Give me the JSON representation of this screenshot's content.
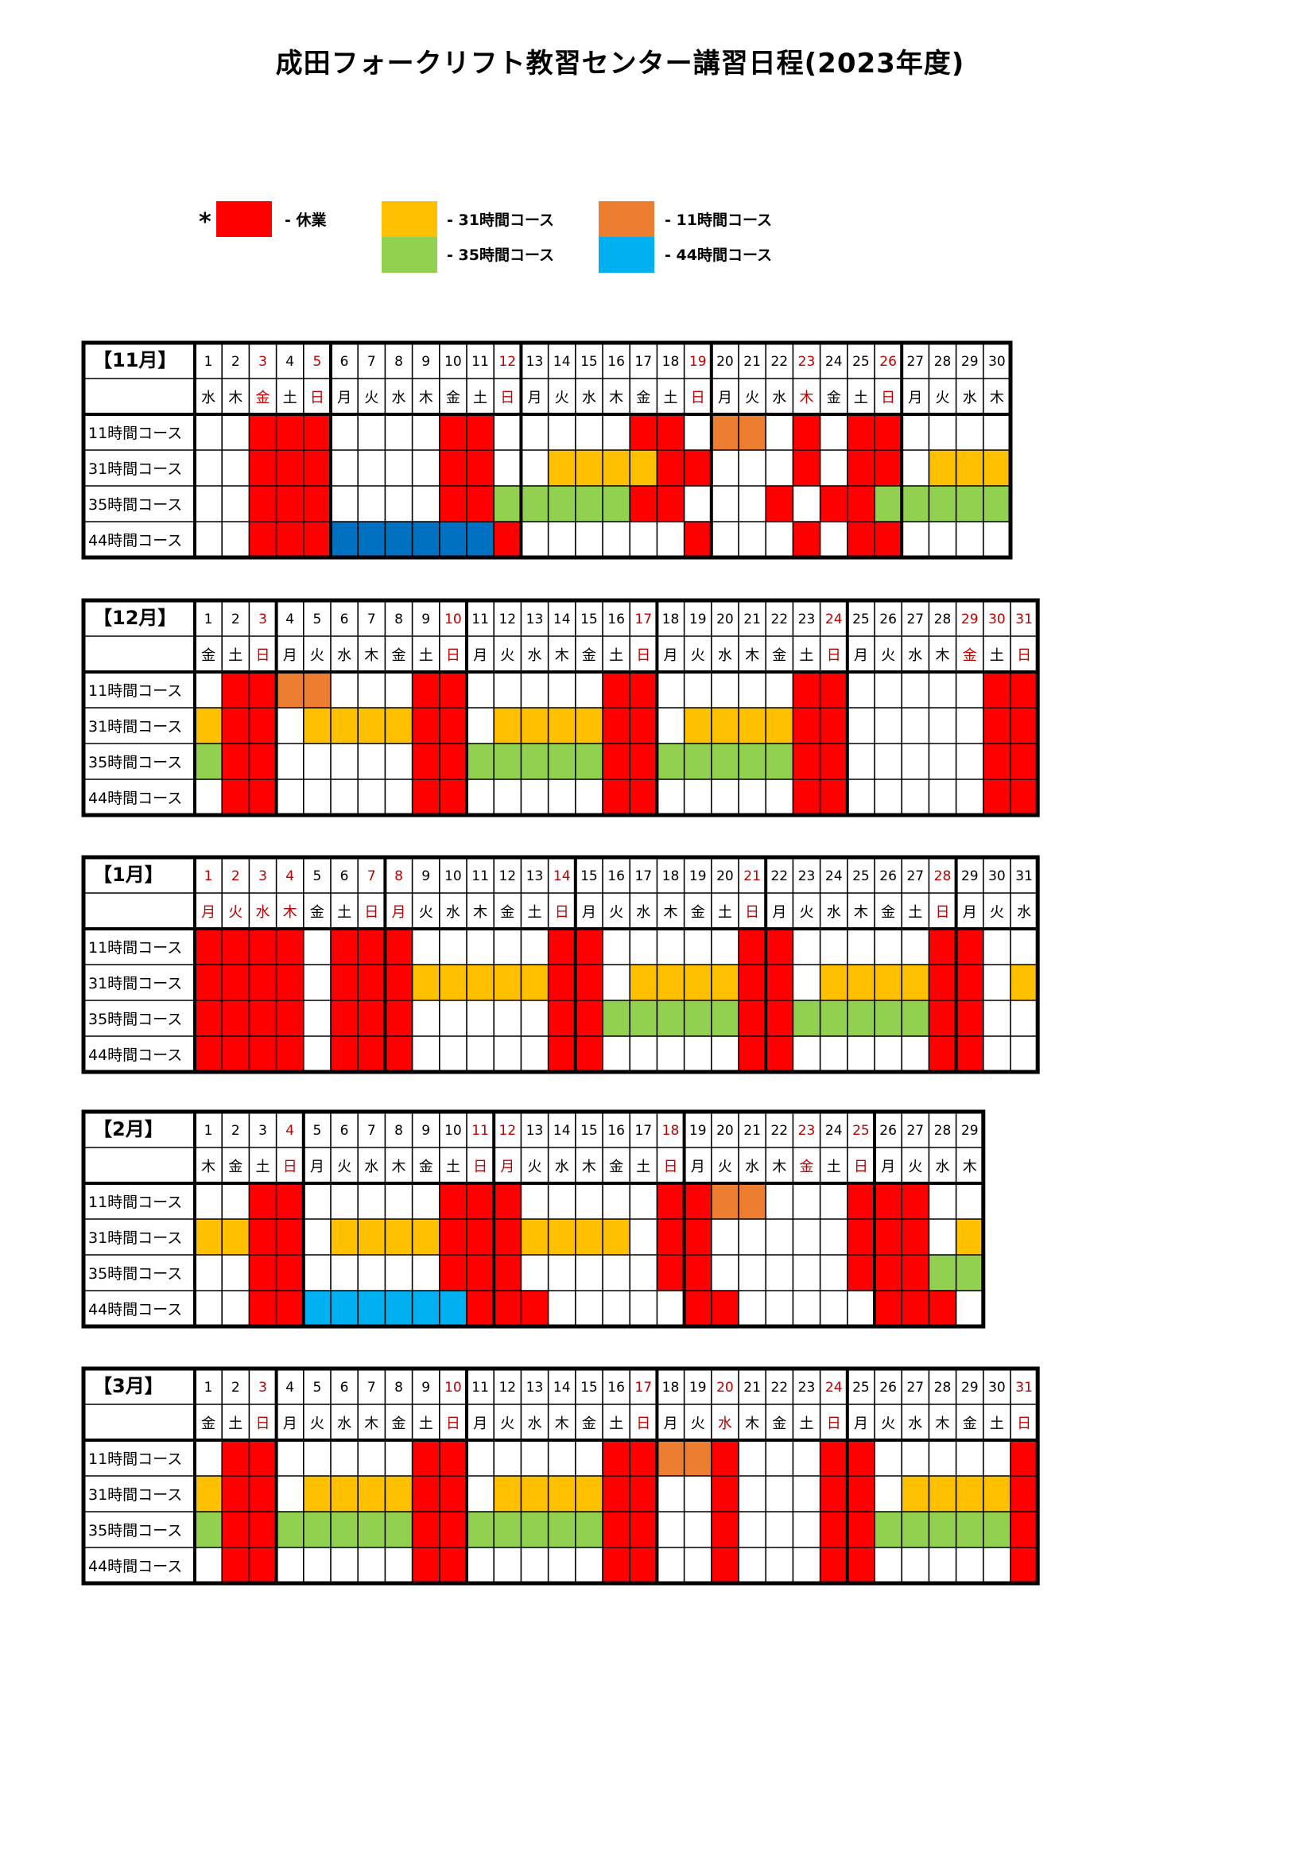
{
  "title": "成田フォークリフト教習センター講習日程(2023年度)",
  "legend": {
    "asterisk": "*",
    "items": [
      {
        "key": "closed",
        "label": "- 休業",
        "color": "#ff0000"
      },
      {
        "key": "c31",
        "label": "- 31時間コース",
        "color": "#ffc000"
      },
      {
        "key": "c11",
        "label": "- 11時間コース",
        "color": "#ed7d31"
      },
      {
        "key": "c35",
        "label": "- 35時間コース",
        "color": "#92d050"
      },
      {
        "key": "c44",
        "label": "- 44時間コース",
        "color": "#00b0f0"
      }
    ]
  },
  "colors": {
    "R": "#ff0000",
    "Y": "#ffc000",
    "O": "#ed7d31",
    "G": "#92d050",
    "B": "#00b0f0",
    "D": "#0070c0",
    "holiday_text": "#c00000",
    "border": "#000000"
  },
  "rows": [
    "11時間コース",
    "31時間コース",
    "35時間コース",
    "44時間コース"
  ],
  "months": [
    {
      "label": "【11月】",
      "weekdays": [
        "水",
        "木",
        "金",
        "土",
        "日",
        "月",
        "火",
        "水",
        "木",
        "金",
        "土",
        "日",
        "月",
        "火",
        "水",
        "木",
        "金",
        "土",
        "日",
        "月",
        "火",
        "水",
        "木",
        "金",
        "土",
        "日",
        "月",
        "火",
        "水",
        "木"
      ],
      "red_days": [
        3,
        5,
        12,
        19,
        23,
        26
      ],
      "red_weekdays": [
        3,
        23
      ],
      "grid": [
        "..RRR....RR.....RR.OO.R.RR....",
        "..RRR....RR..YYYYRR...R.RR.YYY",
        "..RRR....RRGGGGGRR...R.RRGGGGG",
        "..RRRDDDDDDR......R...R.RR....."
      ]
    },
    {
      "label": "【12月】",
      "weekdays": [
        "金",
        "土",
        "日",
        "月",
        "火",
        "水",
        "木",
        "金",
        "土",
        "日",
        "月",
        "火",
        "水",
        "木",
        "金",
        "土",
        "日",
        "月",
        "火",
        "水",
        "木",
        "金",
        "土",
        "日",
        "月",
        "火",
        "水",
        "木",
        "金",
        "土",
        "日"
      ],
      "red_days": [
        3,
        10,
        17,
        24,
        29,
        30,
        31
      ],
      "red_weekdays": [
        29
      ],
      "grid": [
        ".RROO...RR.....RR.....RR.....RRR",
        "YRR.YYYYRR.YYYYRR.YYYYRR.....RRR",
        "GRR.....RRGGGGGRRGGGGGRR.....RRR",
        ".RR.....RR.....RR.....RR.....RRR"
      ]
    },
    {
      "label": "【1月】",
      "weekdays": [
        "月",
        "火",
        "水",
        "木",
        "金",
        "土",
        "日",
        "月",
        "火",
        "水",
        "木",
        "金",
        "土",
        "日",
        "月",
        "火",
        "水",
        "木",
        "金",
        "土",
        "日",
        "月",
        "火",
        "水",
        "木",
        "金",
        "土",
        "日",
        "月",
        "火",
        "水"
      ],
      "red_days": [
        1,
        2,
        3,
        4,
        7,
        8,
        14,
        21,
        28
      ],
      "red_weekdays": [
        1,
        2,
        3,
        4,
        8
      ],
      "grid": [
        "RRRR.RRR.....RR.....RR.....RR..",
        "RRRR.RRRYYYYYRR.YYYYRR.YYYYRR.Y",
        "RRRR.RRR.....RRGGGGGRRGGGGGRR..",
        "RRRR.RRR.....RR.....RR.....RR.."
      ]
    },
    {
      "label": "【2月】",
      "weekdays": [
        "木",
        "金",
        "土",
        "日",
        "月",
        "火",
        "水",
        "木",
        "金",
        "土",
        "日",
        "月",
        "火",
        "水",
        "木",
        "金",
        "土",
        "日",
        "月",
        "火",
        "水",
        "木",
        "金",
        "土",
        "日",
        "月",
        "火",
        "水",
        "木"
      ],
      "red_days": [
        4,
        11,
        12,
        18,
        23,
        25
      ],
      "red_weekdays": [
        12,
        23
      ],
      "grid": [
        "..RR.....RRR.....RROO...RRR....",
        "YYRR.YYYYRRRYYYY.RR.....RRR.YYY",
        "..RR.....RRR.....RR.....RRRGGG",
        "..RRBBBBBBRRR.....RR.....RRR..."
      ]
    },
    {
      "label": "【3月】",
      "weekdays": [
        "金",
        "土",
        "日",
        "月",
        "火",
        "水",
        "木",
        "金",
        "土",
        "日",
        "月",
        "火",
        "水",
        "木",
        "金",
        "土",
        "日",
        "月",
        "火",
        "水",
        "木",
        "金",
        "土",
        "日",
        "月",
        "火",
        "水",
        "木",
        "金",
        "土",
        "日"
      ],
      "red_days": [
        3,
        10,
        17,
        20,
        24,
        31
      ],
      "red_weekdays": [
        20
      ],
      "grid": [
        ".RR.....RR.....RROOR...RR.....RR",
        "YRR.YYYYRR.YYYYRR..R...RR.YYYYRR",
        "GRRGGGGGRRGGGGGRR..R...RRGGGGGRR",
        ".RR.....RR.....RR..R...RR.....RR"
      ]
    }
  ]
}
